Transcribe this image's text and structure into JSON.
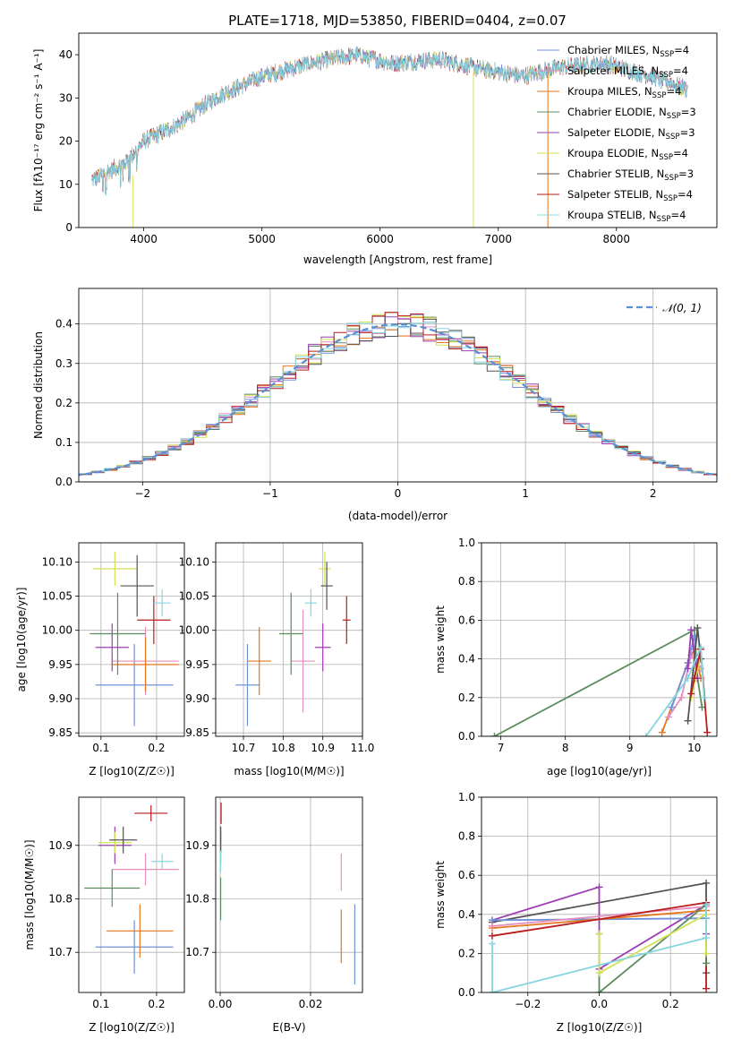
{
  "figure": {
    "title": "PLATE=1718, MJD=53850, FIBERID=0404, z=0.07"
  },
  "colors": {
    "c1": "#6f92d9",
    "c2": "#e58fbd",
    "c3": "#e5771e",
    "c4": "#5b8c5e",
    "c5": "#9e3db3",
    "c6": "#d6e055",
    "c7": "#545454",
    "c8": "#b81c1c",
    "c9": "#86d6e0",
    "norm": "#5b8fd6"
  },
  "chart_data": [
    {
      "type": "line",
      "id": "spectrum",
      "xlabel": "wavelength [Angstrom, rest frame]",
      "ylabel": "Flux [fλ10⁻¹⁷ erg cm⁻² s⁻¹ A⁻¹]",
      "xlim": [
        3450,
        8850
      ],
      "ylim": [
        0,
        45
      ],
      "xticks": [
        "4000",
        "5000",
        "6000",
        "7000",
        "8000"
      ],
      "yticks": [
        "0",
        "10",
        "20",
        "30",
        "40"
      ],
      "continuum": {
        "x": [
          3560,
          3700,
          3850,
          4000,
          4300,
          4600,
          5000,
          5400,
          5800,
          6100,
          6500,
          6800,
          7000,
          7200,
          7500,
          7900,
          8300,
          8600
        ],
        "y": [
          11,
          13,
          15,
          20,
          24,
          30,
          35,
          38,
          40,
          38,
          39,
          37,
          36,
          35,
          37,
          38,
          35,
          32
        ]
      },
      "legend_loc": "upper right",
      "series": [
        {
          "name": "Chabrier MILES, N_SSP=4",
          "color_key": "c1"
        },
        {
          "name": "Salpeter MILES, N_SSP=4",
          "color_key": "c2"
        },
        {
          "name": "Kroupa MILES, N_SSP=4",
          "color_key": "c3"
        },
        {
          "name": "Chabrier ELODIE, N_SSP=3",
          "color_key": "c4"
        },
        {
          "name": "Salpeter ELODIE, N_SSP=3",
          "color_key": "c5"
        },
        {
          "name": "Kroupa ELODIE, N_SSP=4",
          "color_key": "c6"
        },
        {
          "name": "Chabrier STELIB, N_SSP=3",
          "color_key": "c7"
        },
        {
          "name": "Salpeter STELIB, N_SSP=4",
          "color_key": "c8"
        },
        {
          "name": "Kroupa STELIB, N_SSP=4",
          "color_key": "c9"
        }
      ],
      "legend": [
        {
          "pre": "Chabrier MILES, N",
          "sub": "SSP",
          "post": "=4",
          "color_key": "c1"
        },
        {
          "pre": "Salpeter MILES, N",
          "sub": "SSP",
          "post": "=4",
          "color_key": "c2"
        },
        {
          "pre": "Kroupa MILES, N",
          "sub": "SSP",
          "post": "=4",
          "color_key": "c3"
        },
        {
          "pre": "Chabrier ELODIE, N",
          "sub": "SSP",
          "post": "=3",
          "color_key": "c4"
        },
        {
          "pre": "Salpeter ELODIE, N",
          "sub": "SSP",
          "post": "=3",
          "color_key": "c5"
        },
        {
          "pre": "Kroupa ELODIE, N",
          "sub": "SSP",
          "post": "=4",
          "color_key": "c6"
        },
        {
          "pre": "Chabrier STELIB, N",
          "sub": "SSP",
          "post": "=3",
          "color_key": "c7"
        },
        {
          "pre": "Salpeter STELIB, N",
          "sub": "SSP",
          "post": "=4",
          "color_key": "c8"
        },
        {
          "pre": "Kroupa STELIB, N",
          "sub": "SSP",
          "post": "=4",
          "color_key": "c9"
        }
      ]
    },
    {
      "type": "bar",
      "id": "residuals",
      "xlabel": "(data-model)/error",
      "ylabel": "Normed distribution",
      "xlim": [
        -2.5,
        2.5
      ],
      "ylim": [
        0,
        0.49
      ],
      "xticks": [
        "−2",
        "−1",
        "0",
        "1",
        "2"
      ],
      "yticks": [
        "0.0",
        "0.1",
        "0.2",
        "0.3",
        "0.4"
      ],
      "grid": true,
      "bin_width": 0.1,
      "legend_label": "𝒩(0, 1)",
      "legend_loc": "upper right"
    },
    {
      "type": "scatter",
      "id": "age_vs_Z",
      "xlabel": "Z [log10(Z/Z☉)]",
      "ylabel": "age [log10(age/yr)]",
      "xlim": [
        0.06,
        0.25
      ],
      "ylim": [
        9.845,
        10.128
      ],
      "xticks": [
        "0.1",
        "0.2"
      ],
      "yticks": [
        "9.85",
        "9.90",
        "9.95",
        "10.00",
        "10.05",
        "10.10"
      ],
      "grid": true,
      "points": [
        {
          "color_key": "c1",
          "x": 0.16,
          "y": 9.92,
          "xerr": 0.07,
          "yerr": 0.06
        },
        {
          "color_key": "c2",
          "x": 0.18,
          "y": 9.955,
          "xerr": 0.06,
          "yerr": 0.05
        },
        {
          "color_key": "c3",
          "x": 0.18,
          "y": 9.95,
          "xerr": 0.06,
          "yerr": 0.04
        },
        {
          "color_key": "c4",
          "x": 0.13,
          "y": 9.995,
          "xerr": 0.05,
          "yerr": 0.06
        },
        {
          "color_key": "c5",
          "x": 0.12,
          "y": 9.975,
          "xerr": 0.03,
          "yerr": 0.035
        },
        {
          "color_key": "c6",
          "x": 0.125,
          "y": 10.09,
          "xerr": 0.04,
          "yerr": 0.025
        },
        {
          "color_key": "c7",
          "x": 0.165,
          "y": 10.065,
          "xerr": 0.03,
          "yerr": 0.045
        },
        {
          "color_key": "c8",
          "x": 0.195,
          "y": 10.015,
          "xerr": 0.03,
          "yerr": 0.035
        },
        {
          "color_key": "c9",
          "x": 0.21,
          "y": 10.04,
          "xerr": 0.015,
          "yerr": 0.02
        }
      ]
    },
    {
      "type": "scatter",
      "id": "age_vs_mass",
      "xlabel": "mass [log10(M/M☉)]",
      "ylabel": "",
      "xlim": [
        10.63,
        11.0
      ],
      "ylim": [
        9.845,
        10.128
      ],
      "xticks": [
        "10.7",
        "10.8",
        "10.9",
        "11.0"
      ],
      "yticks": [
        "9.85",
        "9.90",
        "9.95",
        "10.00",
        "10.05",
        "10.10"
      ],
      "grid": true,
      "points": [
        {
          "color_key": "c1",
          "x": 10.71,
          "y": 9.92,
          "xerr": 0.03,
          "yerr": 0.06
        },
        {
          "color_key": "c2",
          "x": 10.85,
          "y": 9.955,
          "xerr": 0.03,
          "yerr": 0.075
        },
        {
          "color_key": "c3",
          "x": 10.74,
          "y": 9.955,
          "xerr": 0.03,
          "yerr": 0.05
        },
        {
          "color_key": "c4",
          "x": 10.82,
          "y": 9.995,
          "xerr": 0.03,
          "yerr": 0.06
        },
        {
          "color_key": "c5",
          "x": 10.9,
          "y": 9.975,
          "xerr": 0.02,
          "yerr": 0.035
        },
        {
          "color_key": "c6",
          "x": 10.905,
          "y": 10.09,
          "xerr": 0.015,
          "yerr": 0.025
        },
        {
          "color_key": "c7",
          "x": 10.91,
          "y": 10.065,
          "xerr": 0.015,
          "yerr": 0.035
        },
        {
          "color_key": "c8",
          "x": 10.96,
          "y": 10.015,
          "xerr": 0.01,
          "yerr": 0.035
        },
        {
          "color_key": "c9",
          "x": 10.87,
          "y": 10.04,
          "xerr": 0.015,
          "yerr": 0.02
        }
      ]
    },
    {
      "type": "line",
      "id": "weight_vs_age",
      "xlabel": "age [log10(age/yr)]",
      "ylabel": "mass weight",
      "xlim": [
        6.7,
        10.35
      ],
      "ylim": [
        0,
        1.0
      ],
      "xticks": [
        "7",
        "8",
        "9",
        "10"
      ],
      "yticks": [
        "0.0",
        "0.2",
        "0.4",
        "0.6",
        "0.8",
        "1.0"
      ],
      "grid": true,
      "series": [
        {
          "color_key": "c4",
          "x": [
            6.9,
            10.0,
            10.05,
            10.12
          ],
          "y": [
            0.0,
            0.55,
            0.3,
            0.15
          ]
        },
        {
          "color_key": "c3",
          "x": [
            9.5,
            9.9,
            10.0,
            10.1
          ],
          "y": [
            0.02,
            0.38,
            0.45,
            0.3
          ]
        },
        {
          "color_key": "c2",
          "x": [
            9.6,
            9.8,
            9.95,
            10.1
          ],
          "y": [
            0.1,
            0.2,
            0.42,
            0.35
          ]
        },
        {
          "color_key": "c1",
          "x": [
            9.65,
            9.9,
            10.0,
            10.05
          ],
          "y": [
            0.15,
            0.38,
            0.52,
            0.3
          ]
        },
        {
          "color_key": "c5",
          "x": [
            9.9,
            9.95,
            10.05
          ],
          "y": [
            0.35,
            0.55,
            0.3
          ]
        },
        {
          "color_key": "c6",
          "x": [
            9.95,
            10.05,
            10.1
          ],
          "y": [
            0.2,
            0.35,
            0.4
          ]
        },
        {
          "color_key": "c7",
          "x": [
            9.9,
            10.05,
            10.1
          ],
          "y": [
            0.08,
            0.56,
            0.4
          ]
        },
        {
          "color_key": "c8",
          "x": [
            9.95,
            10.0,
            10.1,
            10.2
          ],
          "y": [
            0.22,
            0.3,
            0.45,
            0.02
          ]
        },
        {
          "color_key": "c9",
          "x": [
            9.25,
            9.9,
            10.1,
            10.15
          ],
          "y": [
            0.0,
            0.3,
            0.46,
            0.2
          ]
        }
      ]
    },
    {
      "type": "scatter",
      "id": "mass_vs_Z",
      "xlabel": "Z [log10(Z/Z☉)]",
      "ylabel": "mass [log10(M/M☉)]",
      "xlim": [
        0.06,
        0.25
      ],
      "ylim": [
        10.625,
        10.99
      ],
      "xticks": [
        "0.1",
        "0.2"
      ],
      "yticks": [
        "10.7",
        "10.8",
        "10.9"
      ],
      "grid": true,
      "points": [
        {
          "color_key": "c1",
          "x": 0.16,
          "y": 10.71,
          "xerr": 0.07,
          "yerr": 0.05
        },
        {
          "color_key": "c2",
          "x": 0.18,
          "y": 10.855,
          "xerr": 0.06,
          "yerr": 0.03
        },
        {
          "color_key": "c3",
          "x": 0.17,
          "y": 10.74,
          "xerr": 0.06,
          "yerr": 0.05
        },
        {
          "color_key": "c4",
          "x": 0.12,
          "y": 10.82,
          "xerr": 0.05,
          "yerr": 0.035
        },
        {
          "color_key": "c5",
          "x": 0.125,
          "y": 10.9,
          "xerr": 0.03,
          "yerr": 0.035
        },
        {
          "color_key": "c6",
          "x": 0.125,
          "y": 10.905,
          "xerr": 0.03,
          "yerr": 0.02
        },
        {
          "color_key": "c7",
          "x": 0.14,
          "y": 10.91,
          "xerr": 0.025,
          "yerr": 0.025
        },
        {
          "color_key": "c8",
          "x": 0.19,
          "y": 10.96,
          "xerr": 0.03,
          "yerr": 0.015
        },
        {
          "color_key": "c9",
          "x": 0.21,
          "y": 10.87,
          "xerr": 0.02,
          "yerr": 0.015
        }
      ]
    },
    {
      "type": "scatter",
      "id": "mass_vs_EBV",
      "xlabel": "E(B-V)",
      "ylabel": "",
      "xlim": [
        -0.001,
        0.0315
      ],
      "ylim": [
        10.625,
        10.99
      ],
      "xticks": [
        "0.00",
        "0.02"
      ],
      "yticks": [
        "10.7",
        "10.8",
        "10.9"
      ],
      "grid": true,
      "points": [
        {
          "color_key": "c1",
          "x": 0.0298,
          "y": 10.715,
          "xerr": 0,
          "yerr": 0.075
        },
        {
          "color_key": "c2",
          "x": 0.0268,
          "y": 10.85,
          "xerr": 0,
          "yerr": 0.035
        },
        {
          "color_key": "c3",
          "x": 0.0268,
          "y": 10.73,
          "xerr": 0,
          "yerr": 0.05
        },
        {
          "color_key": "c4",
          "x": 0.0001,
          "y": 10.8,
          "xerr": 0,
          "yerr": 0.04
        },
        {
          "color_key": "c5",
          "x": 0.0001,
          "y": 10.9,
          "xerr": 0,
          "yerr": 0.035
        },
        {
          "color_key": "c6",
          "x": 0.0002,
          "y": 10.905,
          "xerr": 0,
          "yerr": 0.02
        },
        {
          "color_key": "c7",
          "x": 0.0001,
          "y": 10.91,
          "xerr": 0,
          "yerr": 0.025
        },
        {
          "color_key": "c8",
          "x": 0.0002,
          "y": 10.96,
          "xerr": 0,
          "yerr": 0.02
        },
        {
          "color_key": "c9",
          "x": 0.0001,
          "y": 10.87,
          "xerr": 0,
          "yerr": 0.02
        }
      ]
    },
    {
      "type": "line",
      "id": "weight_vs_Z",
      "xlabel": "Z [log10(Z/Z☉)]",
      "ylabel": "mass weight",
      "xlim": [
        -0.33,
        0.33
      ],
      "ylim": [
        0,
        1.0
      ],
      "xticks": [
        "−0.2",
        "0.0",
        "0.2"
      ],
      "yticks": [
        "0.0",
        "0.2",
        "0.4",
        "0.6",
        "0.8",
        "1.0"
      ],
      "grid": true,
      "series": [
        {
          "color_key": "c7",
          "x": [
            -0.3,
            0.3,
            0.3
          ],
          "y": [
            0.36,
            0.56,
            0.1
          ]
        },
        {
          "color_key": "c5",
          "x": [
            -0.3,
            0.0,
            0.0,
            0.3,
            0.3
          ],
          "y": [
            0.37,
            0.54,
            0.12,
            0.45,
            0.3
          ]
        },
        {
          "color_key": "c1",
          "x": [
            -0.3,
            0.3
          ],
          "y": [
            0.37,
            0.38
          ]
        },
        {
          "color_key": "c3",
          "x": [
            -0.3,
            0.3
          ],
          "y": [
            0.33,
            0.42
          ]
        },
        {
          "color_key": "c2",
          "x": [
            -0.3,
            0.3
          ],
          "y": [
            0.34,
            0.44
          ]
        },
        {
          "color_key": "c8",
          "x": [
            -0.3,
            0.3,
            0.3
          ],
          "y": [
            0.29,
            0.46,
            0.02
          ]
        },
        {
          "color_key": "c4",
          "x": [
            0.0,
            0.0,
            0.3,
            0.3
          ],
          "y": [
            0.3,
            0.0,
            0.45,
            0.15
          ]
        },
        {
          "color_key": "c6",
          "x": [
            0.0,
            0.0,
            0.3,
            0.3
          ],
          "y": [
            0.3,
            0.1,
            0.4,
            0.2
          ]
        },
        {
          "color_key": "c9",
          "x": [
            -0.3,
            -0.3,
            0.3,
            0.3
          ],
          "y": [
            0.25,
            0.0,
            0.28,
            0.45
          ]
        }
      ]
    }
  ]
}
